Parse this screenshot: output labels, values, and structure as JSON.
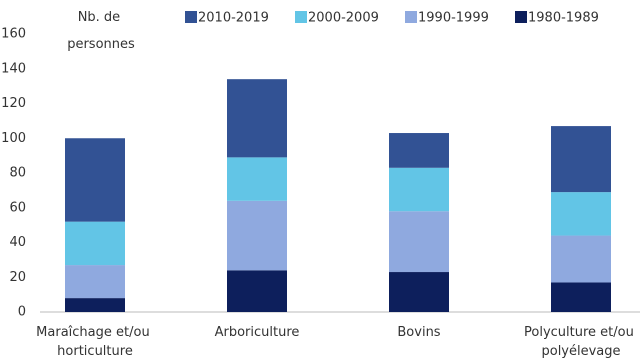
{
  "chart_data": {
    "type": "stacked-bar",
    "y_label": "Nb. de personnes",
    "categories": [
      "Maraîchage et/ou horticulture",
      "Arboriculture",
      "Bovins",
      "Polyculture et/ou polyélevage"
    ],
    "series": [
      {
        "name": "2010-2019",
        "color": "#325294",
        "values": [
          48,
          45,
          20,
          38
        ]
      },
      {
        "name": "2000-2009",
        "color": "#62c5e6",
        "values": [
          25,
          25,
          25,
          25
        ]
      },
      {
        "name": "1990-1999",
        "color": "#8fa9df",
        "values": [
          19,
          40,
          35,
          27
        ]
      },
      {
        "name": "1980-1989",
        "color": "#0d1f5c",
        "values": [
          8,
          24,
          23,
          17
        ]
      }
    ],
    "ylim": [
      0,
      160
    ],
    "yticks": [
      0,
      20,
      40,
      60,
      80,
      100,
      120,
      140,
      160
    ],
    "grid": false
  }
}
